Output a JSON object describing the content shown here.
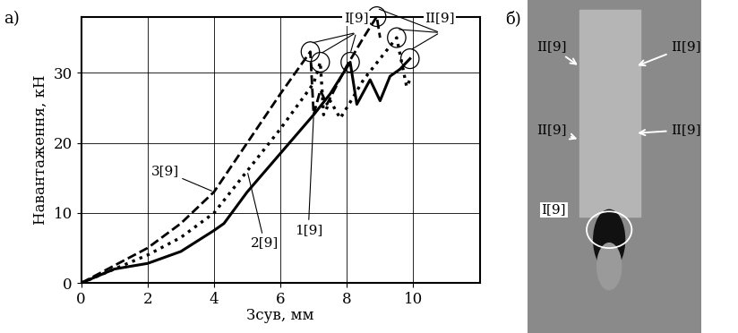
{
  "chart_data": {
    "type": "line",
    "panel_label": "а)",
    "x_label": "Зсув, мм",
    "y_label": "Навантаження, кН",
    "xlim": [
      0,
      12
    ],
    "ylim": [
      0,
      38
    ],
    "xticks": [
      0,
      2,
      4,
      6,
      8,
      10
    ],
    "yticks": [
      0,
      10,
      20,
      30
    ],
    "grid": true,
    "series": [
      {
        "name": "1[9]",
        "color": "#000000",
        "line_style": "solid",
        "x": [
          0,
          1,
          2,
          3,
          4,
          4.3,
          5,
          6,
          7,
          7.5,
          8.1,
          8.3,
          8.7,
          9.0,
          9.3,
          9.6,
          9.9
        ],
        "values": [
          0,
          2,
          2.8,
          4.5,
          7.5,
          8.5,
          13,
          18.5,
          24,
          27,
          31.5,
          25.5,
          29,
          26,
          29.5,
          30.5,
          32
        ]
      },
      {
        "name": "2[9]",
        "color": "#000000",
        "line_style": "dotted",
        "x": [
          0,
          1,
          2,
          3,
          4,
          5,
          6,
          7,
          7.2,
          7.3,
          7.5,
          7.8,
          8.0,
          8.5,
          9.0,
          9.5,
          9.8,
          9.9
        ],
        "values": [
          0,
          2,
          4,
          6.5,
          10,
          16,
          22,
          28.5,
          31.5,
          24,
          26,
          23.5,
          25,
          29,
          32,
          35,
          28,
          29
        ]
      },
      {
        "name": "3[9]",
        "color": "#000000",
        "line_style": "dashed",
        "x": [
          0,
          1,
          2,
          3,
          4,
          5,
          6,
          6.9,
          7.0,
          7.2,
          7.4,
          8.0,
          8.5,
          8.9,
          9.0
        ],
        "values": [
          0,
          2.5,
          5,
          8.5,
          13,
          20,
          27,
          33,
          24,
          27.5,
          25.5,
          31,
          35,
          38,
          35
        ]
      }
    ],
    "annotations": [
      {
        "text": "I[9]",
        "points": [
          [
            6.9,
            33
          ],
          [
            7.2,
            31.5
          ],
          [
            8.1,
            31.5
          ]
        ]
      },
      {
        "text": "II[9]",
        "points": [
          [
            8.9,
            38
          ],
          [
            9.5,
            35
          ],
          [
            9.9,
            32
          ]
        ]
      }
    ]
  },
  "photo": {
    "panel_label": "б)",
    "labels": [
      "II[9]",
      "II[9]",
      "II[9]",
      "II[9]",
      "I[9]"
    ]
  }
}
